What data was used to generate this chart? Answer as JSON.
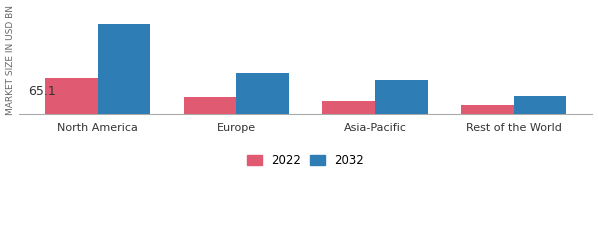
{
  "categories": [
    "North America",
    "Europe",
    "Asia-Pacific",
    "Rest of the World"
  ],
  "values_2022": [
    65.1,
    30.0,
    23.0,
    16.0
  ],
  "values_2032": [
    165.0,
    75.0,
    62.0,
    33.0
  ],
  "bar_color_2022": "#e05a72",
  "bar_color_2032": "#2e7db5",
  "ylabel": "MARKET SIZE IN USD BN",
  "annotation_text": "65.1",
  "bar_width": 0.38,
  "ylim": [
    0,
    200
  ],
  "legend_labels": [
    "2022",
    "2032"
  ],
  "background_color": "#ffffff",
  "ylabel_fontsize": 6.5,
  "tick_fontsize": 8,
  "legend_fontsize": 8.5,
  "annotation_fontsize": 9
}
